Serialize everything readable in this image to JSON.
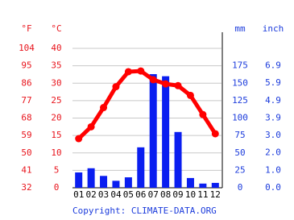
{
  "chart_data": {
    "type": "climate",
    "categories": [
      "01",
      "02",
      "03",
      "04",
      "05",
      "06",
      "07",
      "08",
      "09",
      "10",
      "11",
      "12"
    ],
    "axes": [
      {
        "label": "°F",
        "color": "#e8141c",
        "ylim": [
          32,
          104
        ],
        "yticks": [
          32,
          41,
          50,
          59,
          68,
          77,
          86,
          95,
          104
        ]
      },
      {
        "label": "°C",
        "color": "#e8141c",
        "ylim": [
          0,
          40
        ],
        "yticks": [
          0,
          5,
          10,
          15,
          20,
          25,
          30,
          35,
          40
        ]
      },
      {
        "label": "mm",
        "color": "#1c3cdc",
        "ylim": [
          0,
          200
        ],
        "yticks": [
          0,
          25,
          50,
          75,
          100,
          125,
          150,
          175
        ]
      },
      {
        "label": "inch",
        "color": "#1c3cdc",
        "ylim": [
          0,
          7.87
        ],
        "yticks": [
          {
            "value": 0,
            "label": "0.0"
          },
          {
            "value": 0.98,
            "label": "1.0"
          },
          {
            "value": 1.97,
            "label": "2.0"
          },
          {
            "value": 2.95,
            "label": "3.0"
          },
          {
            "value": 3.94,
            "label": "3.9"
          },
          {
            "value": 4.92,
            "label": "4.9"
          },
          {
            "value": 5.91,
            "label": "5.9"
          },
          {
            "value": 6.89,
            "label": "6.9"
          }
        ]
      }
    ],
    "grid": true,
    "series": [
      {
        "type": "bar",
        "axis": 2,
        "color": "#0a1ef0",
        "values": [
          22,
          28,
          17,
          10,
          15,
          58,
          163,
          160,
          80,
          14,
          6,
          7
        ]
      },
      {
        "type": "line",
        "axis": 1,
        "color": "#ff0000",
        "values": [
          14.1,
          17.5,
          23,
          29,
          33.3,
          33.5,
          31,
          29.8,
          29.3,
          26.5,
          21,
          15.5
        ]
      }
    ],
    "copyright": "Copyright: CLIMATE-DATA.ORG"
  }
}
